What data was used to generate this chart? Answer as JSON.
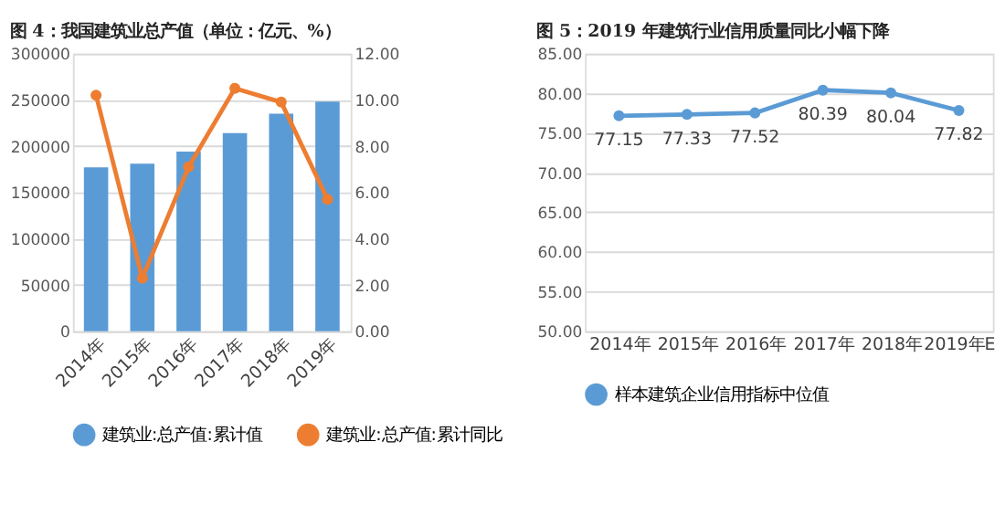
{
  "chart_data": [
    {
      "type": "bar",
      "title": "图 4：我国建筑业总产值（单位：亿元、%）",
      "categories": [
        "2014年",
        "2015年",
        "2016年",
        "2017年",
        "2018年",
        "2019年"
      ],
      "series": [
        {
          "name": "建筑业:总产值:累计值",
          "color": "#5b9bd5",
          "values": [
            177000,
            181000,
            194000,
            214000,
            235000,
            248000
          ]
        },
        {
          "name": "建筑业:总产值:累计同比",
          "color": "#ed7d31",
          "type": "line",
          "axis": "y2",
          "marker": "circle",
          "values": [
            10.2,
            2.3,
            7.1,
            10.5,
            9.9,
            5.7
          ]
        }
      ],
      "ylim": [
        0,
        300000
      ],
      "yticks": [
        0,
        50000,
        100000,
        150000,
        200000,
        250000,
        300000
      ],
      "y2lim": [
        0,
        12
      ],
      "y2ticks": [
        {
          "value": 0,
          "label": "0.00"
        },
        {
          "value": 2,
          "label": "2.00"
        },
        {
          "value": 4,
          "label": "4.00"
        },
        {
          "value": 6,
          "label": "6.00"
        },
        {
          "value": 8,
          "label": "8.00"
        },
        {
          "value": 10,
          "label": "10.00"
        },
        {
          "value": 12,
          "label": "12.00"
        }
      ],
      "grid": "y",
      "legend": "bottom"
    },
    {
      "type": "line",
      "title": "图 5：2019 年建筑行业信用质量同比小幅下降",
      "categories": [
        "2014年",
        "2015年",
        "2016年",
        "2017年",
        "2018年",
        "2019年E"
      ],
      "series": [
        {
          "name": "样本建筑企业信用指标中位值",
          "color": "#5b9bd5",
          "values": [
            77.15,
            77.33,
            77.52,
            80.39,
            80.04,
            77.82
          ]
        }
      ],
      "ylim": [
        50,
        85
      ],
      "yticks": [
        {
          "value": 50,
          "label": "50.00"
        },
        {
          "value": 55,
          "label": "55.00"
        },
        {
          "value": 60,
          "label": "60.00"
        },
        {
          "value": 65,
          "label": "65.00"
        },
        {
          "value": 70,
          "label": "70.00"
        },
        {
          "value": 75,
          "label": "75.00"
        },
        {
          "value": 80,
          "label": "80.00"
        },
        {
          "value": 85,
          "label": "85.00"
        }
      ],
      "marker": "circle",
      "data_labels": true,
      "grid": "y",
      "legend": "bottom"
    }
  ]
}
